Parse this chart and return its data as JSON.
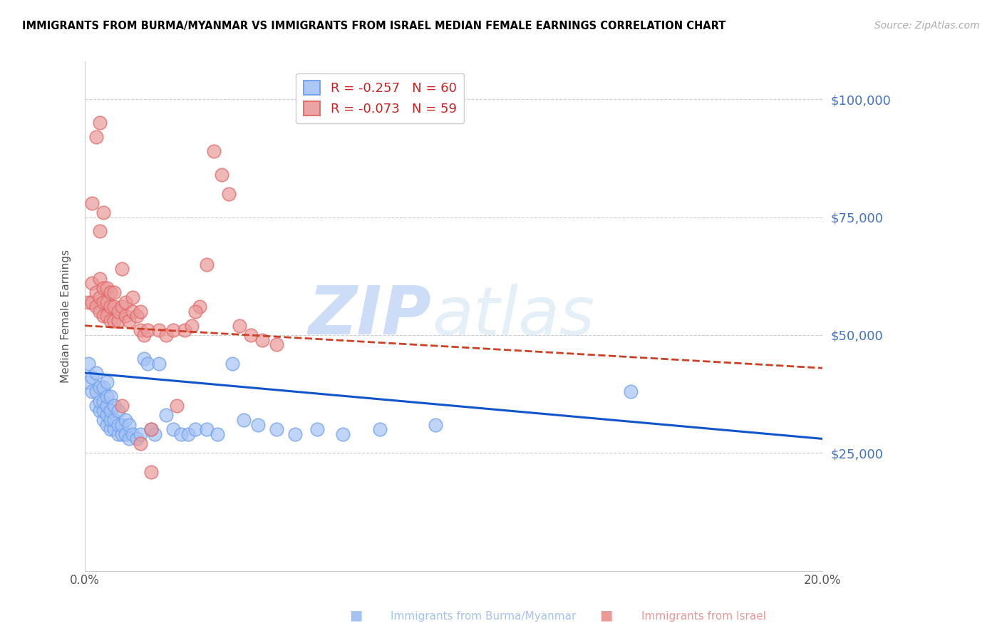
{
  "title": "IMMIGRANTS FROM BURMA/MYANMAR VS IMMIGRANTS FROM ISRAEL MEDIAN FEMALE EARNINGS CORRELATION CHART",
  "source": "Source: ZipAtlas.com",
  "ylabel": "Median Female Earnings",
  "yticks": [
    0,
    25000,
    50000,
    75000,
    100000
  ],
  "ytick_labels": [
    "",
    "$25,000",
    "$50,000",
    "$75,000",
    "$100,000"
  ],
  "xlim": [
    0.0,
    0.2
  ],
  "ylim": [
    0,
    108000
  ],
  "legend_blue_r": "R = -0.257",
  "legend_blue_n": "N = 60",
  "legend_pink_r": "R = -0.073",
  "legend_pink_n": "N = 59",
  "legend_label_blue": "Immigrants from Burma/Myanmar",
  "legend_label_pink": "Immigrants from Israel",
  "blue_face_color": "#a4c2f4",
  "blue_edge_color": "#6d9eeb",
  "pink_face_color": "#ea9999",
  "pink_edge_color": "#e06666",
  "blue_line_color": "#1155cc",
  "pink_line_color": "#cc4125",
  "blue_scatter_x": [
    0.001,
    0.001,
    0.002,
    0.002,
    0.003,
    0.003,
    0.003,
    0.004,
    0.004,
    0.004,
    0.005,
    0.005,
    0.005,
    0.005,
    0.006,
    0.006,
    0.006,
    0.006,
    0.006,
    0.007,
    0.007,
    0.007,
    0.007,
    0.008,
    0.008,
    0.008,
    0.009,
    0.009,
    0.009,
    0.01,
    0.01,
    0.011,
    0.011,
    0.012,
    0.012,
    0.013,
    0.014,
    0.015,
    0.016,
    0.017,
    0.018,
    0.019,
    0.02,
    0.022,
    0.024,
    0.026,
    0.028,
    0.03,
    0.033,
    0.036,
    0.04,
    0.043,
    0.047,
    0.052,
    0.057,
    0.063,
    0.07,
    0.08,
    0.095,
    0.148
  ],
  "blue_scatter_y": [
    44000,
    40000,
    38000,
    41000,
    35000,
    38000,
    42000,
    34000,
    36000,
    39000,
    32000,
    34000,
    36000,
    39000,
    31000,
    33000,
    35000,
    37000,
    40000,
    30000,
    32000,
    34000,
    37000,
    30000,
    32000,
    35000,
    29000,
    31000,
    34000,
    29000,
    31000,
    29000,
    32000,
    28000,
    31000,
    29000,
    28000,
    29000,
    45000,
    44000,
    30000,
    29000,
    44000,
    33000,
    30000,
    29000,
    29000,
    30000,
    30000,
    29000,
    44000,
    32000,
    31000,
    30000,
    29000,
    30000,
    29000,
    30000,
    31000,
    38000
  ],
  "pink_scatter_x": [
    0.001,
    0.002,
    0.002,
    0.003,
    0.003,
    0.004,
    0.004,
    0.004,
    0.005,
    0.005,
    0.005,
    0.006,
    0.006,
    0.006,
    0.007,
    0.007,
    0.007,
    0.008,
    0.008,
    0.008,
    0.009,
    0.009,
    0.01,
    0.01,
    0.011,
    0.011,
    0.012,
    0.013,
    0.013,
    0.014,
    0.015,
    0.015,
    0.016,
    0.017,
    0.018,
    0.02,
    0.022,
    0.024,
    0.025,
    0.027,
    0.029,
    0.031,
    0.033,
    0.035,
    0.037,
    0.039,
    0.042,
    0.045,
    0.048,
    0.052,
    0.03,
    0.01,
    0.004,
    0.003,
    0.002,
    0.004,
    0.005,
    0.015,
    0.018
  ],
  "pink_scatter_y": [
    57000,
    57000,
    61000,
    56000,
    59000,
    55000,
    58000,
    62000,
    54000,
    57000,
    60000,
    54000,
    57000,
    60000,
    53000,
    56000,
    59000,
    53000,
    56000,
    59000,
    53000,
    55000,
    56000,
    64000,
    54000,
    57000,
    53000,
    55000,
    58000,
    54000,
    51000,
    55000,
    50000,
    51000,
    30000,
    51000,
    50000,
    51000,
    35000,
    51000,
    52000,
    56000,
    65000,
    89000,
    84000,
    80000,
    52000,
    50000,
    49000,
    48000,
    55000,
    35000,
    95000,
    92000,
    78000,
    72000,
    76000,
    27000,
    21000
  ],
  "watermark_zip": "ZIP",
  "watermark_atlas": "atlas"
}
